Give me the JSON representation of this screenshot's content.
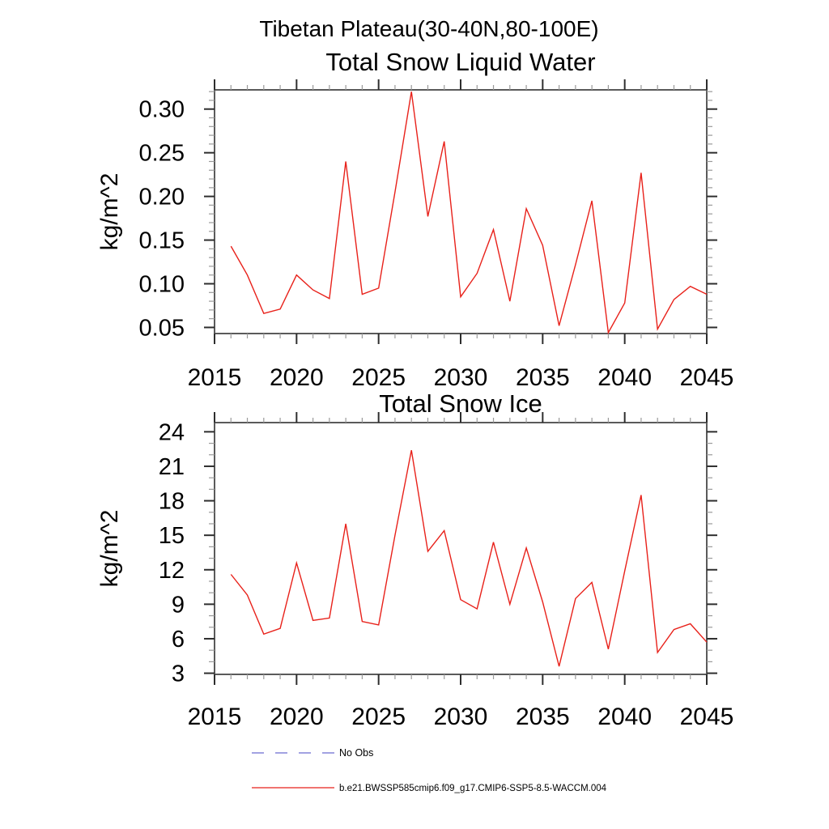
{
  "header": {
    "title": "Tibetan Plateau(30-40N,80-100E)"
  },
  "colors": {
    "series_red": "#e8211a",
    "no_obs_blue": "#6b6bd0",
    "frame": "#5a5a5a",
    "tick": "#2e2e2e",
    "minor_tick": "#9a9a9a",
    "text": "#000000",
    "background": "#ffffff"
  },
  "chart_data": [
    {
      "type": "line",
      "title": "Total Snow Liquid Water",
      "xlabel": "",
      "ylabel": "kg/m^2",
      "xlim": [
        2015,
        2045
      ],
      "ylim": [
        0.043,
        0.322
      ],
      "grid": false,
      "x_major_ticks": [
        2015,
        2020,
        2025,
        2030,
        2035,
        2040,
        2045
      ],
      "x_minor_step": 1,
      "y_major_ticks": [
        0.05,
        0.1,
        0.15,
        0.2,
        0.25,
        0.3
      ],
      "y_tick_labels": [
        "0.05",
        "0.10",
        "0.15",
        "0.20",
        "0.25",
        "0.30"
      ],
      "y_minor_step": 0.01,
      "x": [
        2016,
        2017,
        2018,
        2019,
        2020,
        2021,
        2022,
        2023,
        2024,
        2025,
        2026,
        2027,
        2028,
        2029,
        2030,
        2031,
        2032,
        2033,
        2034,
        2035,
        2036,
        2037,
        2038,
        2039,
        2040,
        2041,
        2042,
        2043,
        2044,
        2045
      ],
      "series": [
        {
          "name": "b.e21.BWSSP585cmip6.f09_g17.CMIP6-SSP5-8.5-WACCM.004",
          "color_key": "series_red",
          "values": [
            0.143,
            0.11,
            0.066,
            0.071,
            0.11,
            0.093,
            0.083,
            0.24,
            0.088,
            0.095,
            0.205,
            0.32,
            0.177,
            0.263,
            0.085,
            0.112,
            0.162,
            0.08,
            0.186,
            0.144,
            0.052,
            0.122,
            0.195,
            0.044,
            0.078,
            0.227,
            0.048,
            0.082,
            0.097,
            0.088
          ]
        }
      ]
    },
    {
      "type": "line",
      "title": "Total Snow Ice",
      "xlabel": "",
      "ylabel": "kg/m^2",
      "xlim": [
        2015,
        2045
      ],
      "ylim": [
        2.9,
        24.8
      ],
      "grid": false,
      "x_major_ticks": [
        2015,
        2020,
        2025,
        2030,
        2035,
        2040,
        2045
      ],
      "x_minor_step": 1,
      "y_major_ticks": [
        3,
        6,
        9,
        12,
        15,
        18,
        21,
        24
      ],
      "y_tick_labels": [
        "3",
        "6",
        "9",
        "12",
        "15",
        "18",
        "21",
        "24"
      ],
      "y_minor_step": 1,
      "x": [
        2016,
        2017,
        2018,
        2019,
        2020,
        2021,
        2022,
        2023,
        2024,
        2025,
        2026,
        2027,
        2028,
        2029,
        2030,
        2031,
        2032,
        2033,
        2034,
        2035,
        2036,
        2037,
        2038,
        2039,
        2040,
        2041,
        2042,
        2043,
        2044,
        2045
      ],
      "series": [
        {
          "name": "b.e21.BWSSP585cmip6.f09_g17.CMIP6-SSP5-8.5-WACCM.004",
          "color_key": "series_red",
          "values": [
            11.6,
            9.8,
            6.4,
            6.9,
            12.6,
            7.6,
            7.8,
            16.0,
            7.5,
            7.2,
            15.0,
            22.4,
            13.6,
            15.4,
            9.4,
            8.6,
            14.4,
            9.0,
            13.9,
            9.2,
            3.6,
            9.5,
            10.9,
            5.1,
            11.9,
            18.5,
            4.8,
            6.8,
            7.3,
            5.7
          ]
        }
      ]
    }
  ],
  "legend": {
    "position": "bottom-left",
    "entries": [
      {
        "label": "No Obs",
        "style": "dashed",
        "color_key": "no_obs_blue"
      },
      {
        "label": "b.e21.BWSSP585cmip6.f09_g17.CMIP6-SSP5-8.5-WACCM.004",
        "style": "solid",
        "color_key": "series_red"
      }
    ]
  }
}
